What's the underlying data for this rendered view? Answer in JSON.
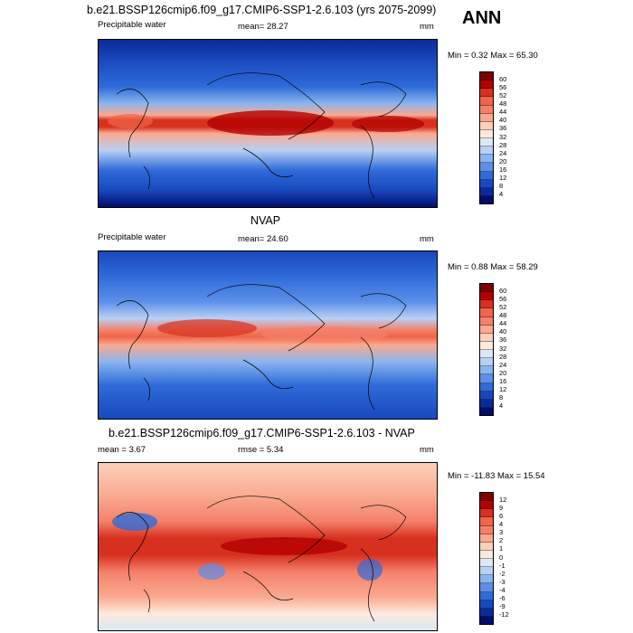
{
  "header": {
    "title": "b.e21.BSSP126cmip6.f09_g17.CMIP6-SSP1-2.6.103 (yrs 2075-2099)",
    "season": "ANN"
  },
  "panels": [
    {
      "title": "",
      "left_label": "Precipitable water",
      "center_label": "mean=  28.27",
      "unit": "mm",
      "minmax": "Min =   0.32 Max =  65.30",
      "colorbar": {
        "ticks": [
          "60",
          "56",
          "52",
          "48",
          "44",
          "40",
          "36",
          "32",
          "28",
          "24",
          "20",
          "16",
          "12",
          "8",
          "4"
        ],
        "colors": [
          "#7f0000",
          "#b30000",
          "#d7301f",
          "#ef6548",
          "#f4806a",
          "#f9a98f",
          "#fcd0bb",
          "#fde9dc",
          "#dbe8f8",
          "#b8d0f5",
          "#8ab4f0",
          "#5b8fe8",
          "#2f6bd8",
          "#1848bd",
          "#0c2a99",
          "#000d6b"
        ]
      },
      "field": "pw_model"
    },
    {
      "title": "NVAP",
      "left_label": "Precipitable water",
      "center_label": "mean=  24.60",
      "unit": "mm",
      "minmax": "Min =   0.88 Max =  58.29",
      "colorbar": {
        "ticks": [
          "60",
          "56",
          "52",
          "48",
          "44",
          "40",
          "36",
          "32",
          "28",
          "24",
          "20",
          "16",
          "12",
          "8",
          "4"
        ],
        "colors": [
          "#7f0000",
          "#b30000",
          "#d7301f",
          "#ef6548",
          "#f4806a",
          "#f9a98f",
          "#fcd0bb",
          "#fde9dc",
          "#dbe8f8",
          "#b8d0f5",
          "#8ab4f0",
          "#5b8fe8",
          "#2f6bd8",
          "#1848bd",
          "#0c2a99",
          "#000d6b"
        ]
      },
      "field": "pw_obs"
    },
    {
      "title": "b.e21.BSSP126cmip6.f09_g17.CMIP6-SSP1-2.6.103 - NVAP",
      "left_label": "mean =   3.67",
      "center_label": "rmse =   5.34",
      "unit": "mm",
      "minmax": "Min = -11.83 Max =  15.54",
      "colorbar": {
        "ticks": [
          "12",
          "9",
          "6",
          "4",
          "3",
          "2",
          "1",
          "0",
          "-1",
          "-2",
          "-3",
          "-4",
          "-6",
          "-9",
          "-12"
        ],
        "colors": [
          "#7f0000",
          "#b30000",
          "#d7301f",
          "#ef6548",
          "#f4806a",
          "#f9a98f",
          "#fcd0bb",
          "#fde9dc",
          "#dbe8f8",
          "#b8d0f5",
          "#8ab4f0",
          "#5b8fe8",
          "#2f6bd8",
          "#1848bd",
          "#0c2a99",
          "#000d6b"
        ]
      },
      "field": "diff"
    }
  ]
}
